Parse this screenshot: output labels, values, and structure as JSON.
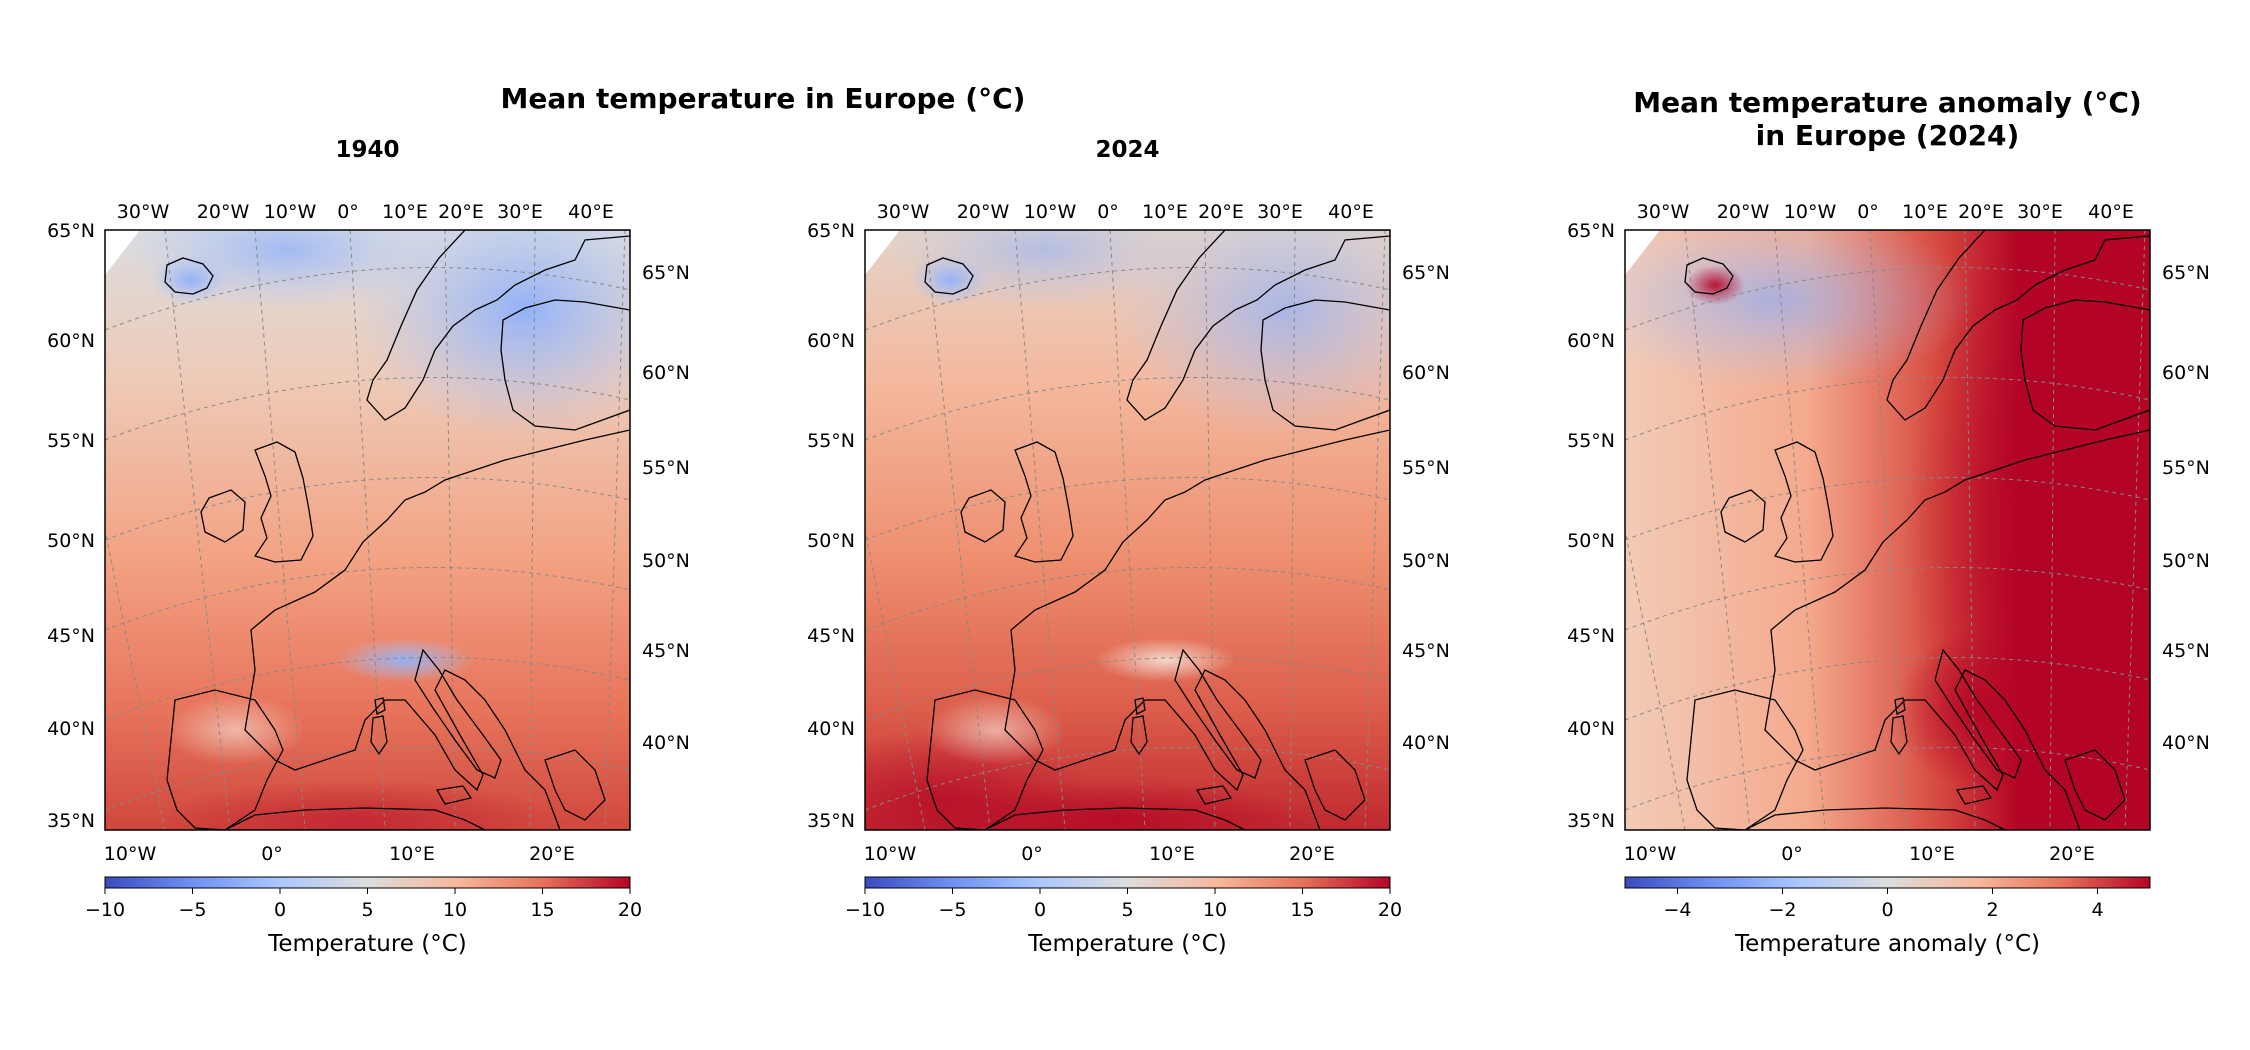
{
  "figure": {
    "title": "Mean temperature in Europe (°C)",
    "colors": {
      "cold": "#3b4cc0",
      "neutral": "#dddddd",
      "warm": "#b40426",
      "coast": "#000000",
      "grid": "#888888"
    }
  },
  "panels": [
    {
      "id": "p1940",
      "title": "1940",
      "map_kind": "temperature",
      "top_ticks": [
        "30°W",
        "20°W",
        "10°W",
        "0°",
        "10°E",
        "20°E",
        "30°E",
        "40°E"
      ],
      "left_ticks": [
        "65°N",
        "60°N",
        "55°N",
        "50°N",
        "45°N",
        "40°N",
        "35°N"
      ],
      "right_ticks": [
        "65°N",
        "60°N",
        "55°N",
        "50°N",
        "45°N",
        "40°N"
      ],
      "bottom_ticks": [
        "10°W",
        "0°",
        "10°E",
        "20°E"
      ],
      "colorbar": {
        "label": "Temperature (°C)",
        "min": -10,
        "max": 20,
        "tick_values": [
          -10,
          -5,
          0,
          5,
          10,
          15,
          20
        ],
        "tick_labels": [
          "−10",
          "−5",
          "0",
          "5",
          "10",
          "15",
          "20"
        ]
      }
    },
    {
      "id": "p2024",
      "title": "2024",
      "map_kind": "temperature",
      "top_ticks": [
        "30°W",
        "20°W",
        "10°W",
        "0°",
        "10°E",
        "20°E",
        "30°E",
        "40°E"
      ],
      "left_ticks": [
        "65°N",
        "60°N",
        "55°N",
        "50°N",
        "45°N",
        "40°N",
        "35°N"
      ],
      "right_ticks": [
        "65°N",
        "60°N",
        "55°N",
        "50°N",
        "45°N",
        "40°N"
      ],
      "bottom_ticks": [
        "10°W",
        "0°",
        "10°E",
        "20°E"
      ],
      "colorbar": {
        "label": "Temperature (°C)",
        "min": -10,
        "max": 20,
        "tick_values": [
          -10,
          -5,
          0,
          5,
          10,
          15,
          20
        ],
        "tick_labels": [
          "−10",
          "−5",
          "0",
          "5",
          "10",
          "15",
          "20"
        ]
      }
    },
    {
      "id": "panom",
      "title_lines": [
        "Mean temperature anomaly (°C)",
        "in Europe (2024)"
      ],
      "map_kind": "anomaly",
      "top_ticks": [
        "30°W",
        "20°W",
        "10°W",
        "0°",
        "10°E",
        "20°E",
        "30°E",
        "40°E"
      ],
      "left_ticks": [
        "65°N",
        "60°N",
        "55°N",
        "50°N",
        "45°N",
        "40°N",
        "35°N"
      ],
      "right_ticks": [
        "65°N",
        "60°N",
        "55°N",
        "50°N",
        "45°N",
        "40°N"
      ],
      "bottom_ticks": [
        "10°W",
        "0°",
        "10°E",
        "20°E"
      ],
      "colorbar": {
        "label": "Temperature anomaly (°C)",
        "min": -5,
        "max": 5,
        "tick_values": [
          -4,
          -2,
          0,
          2,
          4
        ],
        "tick_labels": [
          "−4",
          "−2",
          "0",
          "2",
          "4"
        ]
      }
    }
  ]
}
